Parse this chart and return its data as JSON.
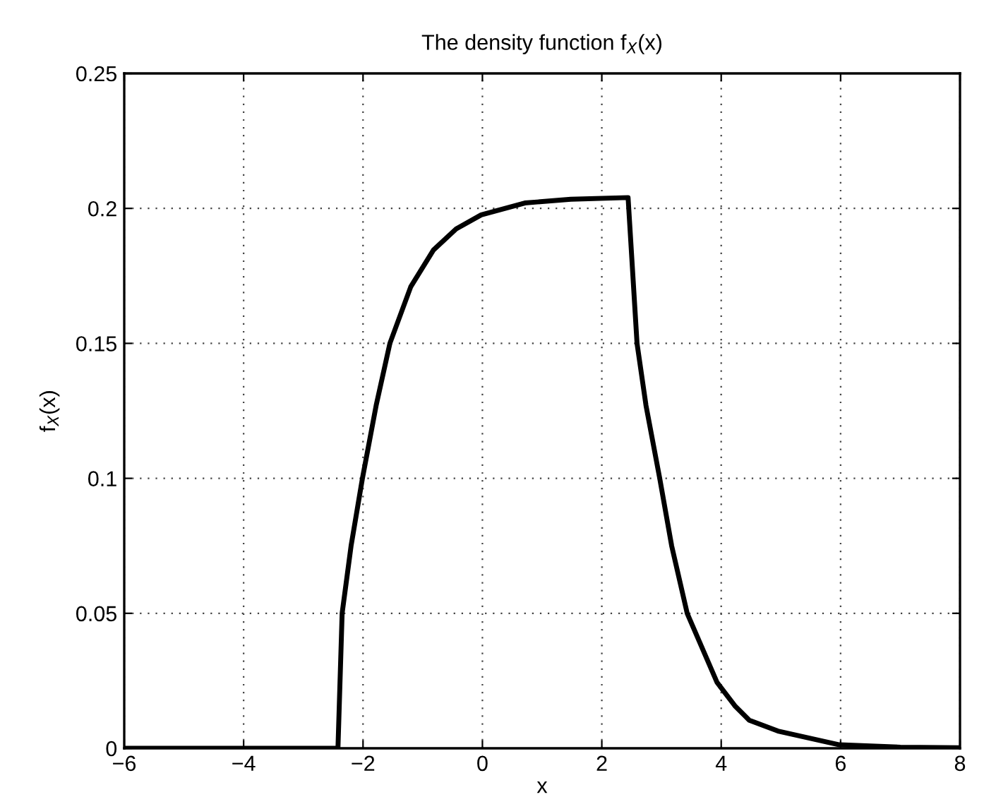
{
  "chart_data": {
    "type": "line",
    "title": "The density function f$_{X}$(x)",
    "xlabel": "x",
    "ylabel": "f$_{X}$(x)",
    "series": [
      {
        "color": "#000000",
        "x": [
          -6,
          -2.42,
          -2.35,
          -2.2,
          -2.01,
          -1.78,
          -1.55,
          -1.2,
          -0.82,
          -0.44,
          -0.02,
          0.71,
          1.48,
          2.44,
          2.59,
          2.74,
          2.97,
          3.17,
          3.43,
          3.93,
          4.23,
          4.47,
          4.95,
          5.98,
          7,
          8
        ],
        "values": [
          0,
          0,
          0.05,
          0.075,
          0.1,
          0.127,
          0.15,
          0.171,
          0.1846,
          0.1924,
          0.1976,
          0.202,
          0.2034,
          0.204,
          0.15,
          0.127,
          0.1,
          0.075,
          0.05,
          0.0244,
          0.0157,
          0.0104,
          0.0064,
          0.0013,
          0.0004,
          0.0002
        ]
      }
    ],
    "xlim": [
      -6,
      8
    ],
    "xticks": [
      -6,
      -4,
      -2,
      0,
      2,
      4,
      6,
      8
    ],
    "ylim": [
      0,
      0.25
    ],
    "yticks": [
      0,
      0.05,
      0.1,
      0.15,
      0.2,
      0.25
    ],
    "grid": true,
    "line_style": "solid",
    "marker": "none",
    "legend": false
  }
}
